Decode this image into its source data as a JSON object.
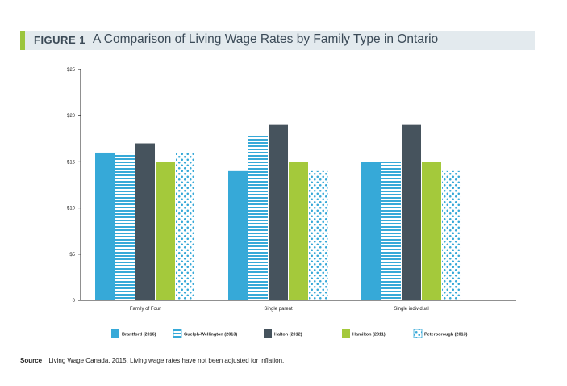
{
  "figure": {
    "label": "FIGURE 1",
    "title": "A Comparison of Living Wage Rates by Family Type in Ontario"
  },
  "source": {
    "label": "Source",
    "text": "Living Wage Canada, 2015. Living wage rates have not been adjusted for inflation."
  },
  "colors": {
    "brantford": "#36a9d8",
    "guelph": "#36a9d8",
    "halton": "#46535d",
    "hamilton": "#a4c93b",
    "peterborough": "#36a9d8",
    "title_bg": "#e3eaee",
    "title_accent": "#9bc53d"
  },
  "chart_data": {
    "type": "bar",
    "title": "A Comparison of Living Wage Rates by Family Type in Ontario",
    "xlabel": "",
    "ylabel": "",
    "ylim": [
      0,
      25
    ],
    "yticks": [
      "0",
      "$5",
      "$10",
      "$15",
      "$20",
      "$25"
    ],
    "ytick_values": [
      0,
      5,
      10,
      15,
      20,
      25
    ],
    "categories": [
      "Family of Four",
      "Single parent",
      "Single individual"
    ],
    "series": [
      {
        "name": "Brantford (2016)",
        "pattern": "solid",
        "values": [
          16,
          14,
          15
        ]
      },
      {
        "name": "Guelph-Wellington (2013)",
        "pattern": "stripes",
        "values": [
          16,
          18,
          15
        ]
      },
      {
        "name": "Halton (2012)",
        "pattern": "solid-dark",
        "values": [
          17,
          19,
          19
        ]
      },
      {
        "name": "Hamilton (2011)",
        "pattern": "solid-green",
        "values": [
          15,
          15,
          15
        ]
      },
      {
        "name": "Peterborough (2013)",
        "pattern": "dots",
        "values": [
          16,
          14,
          14
        ]
      }
    ],
    "legend_position": "bottom",
    "grid": false
  }
}
